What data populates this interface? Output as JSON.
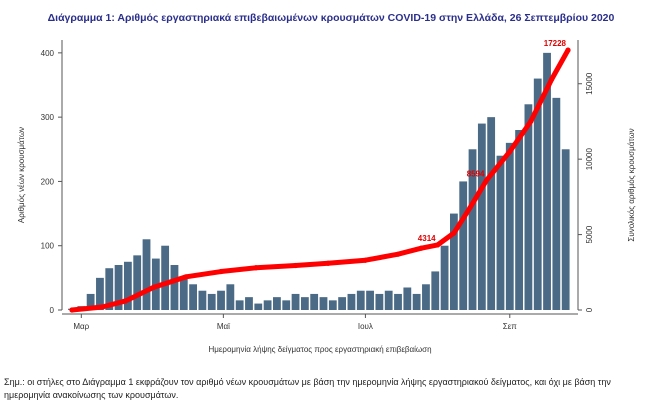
{
  "chart_data": {
    "type": "bar",
    "title": "Διάγραμμα 1: Αριθμός εργαστηριακά επιβεβαιωμένων κρουσμάτων COVID-19 στην Ελλάδα, 26 Σεπτεμβρίου 2020",
    "xlabel": "Ημερομηνία λήψης δείγματος προς εργαστηριακή επιβεβαίωση",
    "ylabel": "Αριθμός νέων κρουσμάτων",
    "y2label": "Συνολικός αριθμός κρουσμάτων",
    "x_tick_labels": [
      "Μαρ",
      "Μαϊ",
      "Ιουλ",
      "Σεπ"
    ],
    "x_tick_dates": [
      "2020-03-01",
      "2020-05-01",
      "2020-07-01",
      "2020-09-01"
    ],
    "x_range": [
      "2020-02-26",
      "2020-09-26"
    ],
    "ylim": [
      0,
      420
    ],
    "y_ticks": [
      0,
      100,
      200,
      300,
      400
    ],
    "y2lim": [
      0,
      17900
    ],
    "y2_ticks": [
      0,
      5000,
      10000,
      15000
    ],
    "bar_color": "#4a6a85",
    "line_color": "#ff0000",
    "series": [
      {
        "type": "bar",
        "dates": [
          "2020-02-26",
          "2020-03-01",
          "2020-03-05",
          "2020-03-09",
          "2020-03-13",
          "2020-03-17",
          "2020-03-21",
          "2020-03-25",
          "2020-03-29",
          "2020-04-02",
          "2020-04-06",
          "2020-04-10",
          "2020-04-14",
          "2020-04-18",
          "2020-04-22",
          "2020-04-26",
          "2020-04-30",
          "2020-05-04",
          "2020-05-08",
          "2020-05-12",
          "2020-05-16",
          "2020-05-20",
          "2020-05-24",
          "2020-05-28",
          "2020-06-01",
          "2020-06-05",
          "2020-06-09",
          "2020-06-13",
          "2020-06-17",
          "2020-06-21",
          "2020-06-25",
          "2020-06-29",
          "2020-07-03",
          "2020-07-07",
          "2020-07-11",
          "2020-07-15",
          "2020-07-19",
          "2020-07-23",
          "2020-07-27",
          "2020-07-31",
          "2020-08-04",
          "2020-08-08",
          "2020-08-12",
          "2020-08-16",
          "2020-08-20",
          "2020-08-24",
          "2020-08-28",
          "2020-09-01",
          "2020-09-05",
          "2020-09-09",
          "2020-09-13",
          "2020-09-17",
          "2020-09-21",
          "2020-09-25"
        ],
        "values": [
          2,
          6,
          25,
          50,
          65,
          70,
          75,
          85,
          110,
          80,
          100,
          70,
          50,
          40,
          30,
          25,
          30,
          40,
          15,
          20,
          10,
          15,
          20,
          15,
          25,
          20,
          25,
          20,
          15,
          20,
          25,
          30,
          30,
          25,
          30,
          25,
          35,
          25,
          40,
          60,
          100,
          150,
          200,
          250,
          290,
          300,
          240,
          260,
          280,
          320,
          360,
          400,
          330,
          250
        ]
      },
      {
        "type": "line",
        "name": "Συνολικός αριθμός κρουσμάτων",
        "dates": [
          "2020-02-26",
          "2020-03-10",
          "2020-03-20",
          "2020-04-01",
          "2020-04-15",
          "2020-04-30",
          "2020-05-15",
          "2020-06-01",
          "2020-06-15",
          "2020-07-01",
          "2020-07-15",
          "2020-07-25",
          "2020-08-01",
          "2020-08-08",
          "2020-08-15",
          "2020-08-22",
          "2020-09-01",
          "2020-09-10",
          "2020-09-19",
          "2020-09-26"
        ],
        "values": [
          0,
          200,
          600,
          1500,
          2200,
          2550,
          2800,
          2950,
          3100,
          3300,
          3700,
          4100,
          4314,
          5100,
          6800,
          8600,
          10500,
          12500,
          15300,
          17228
        ]
      }
    ],
    "annotations": [
      {
        "label": "4314",
        "date": "2020-08-01",
        "value": 4314
      },
      {
        "label": "8594",
        "date": "2020-08-22",
        "value": 8594
      },
      {
        "label": "17228",
        "date": "2020-09-26",
        "value": 17228
      }
    ]
  },
  "note": "Σημ.: οι στήλες στο Διάγραμμα 1 εκφράζουν τον αριθμό νέων κρουσμάτων με βάση την ημερομηνία λήψης εργαστηριακού δείγματος, και όχι με βάση την ημερομηνία ανακοίνωσης των κρουσμάτων."
}
